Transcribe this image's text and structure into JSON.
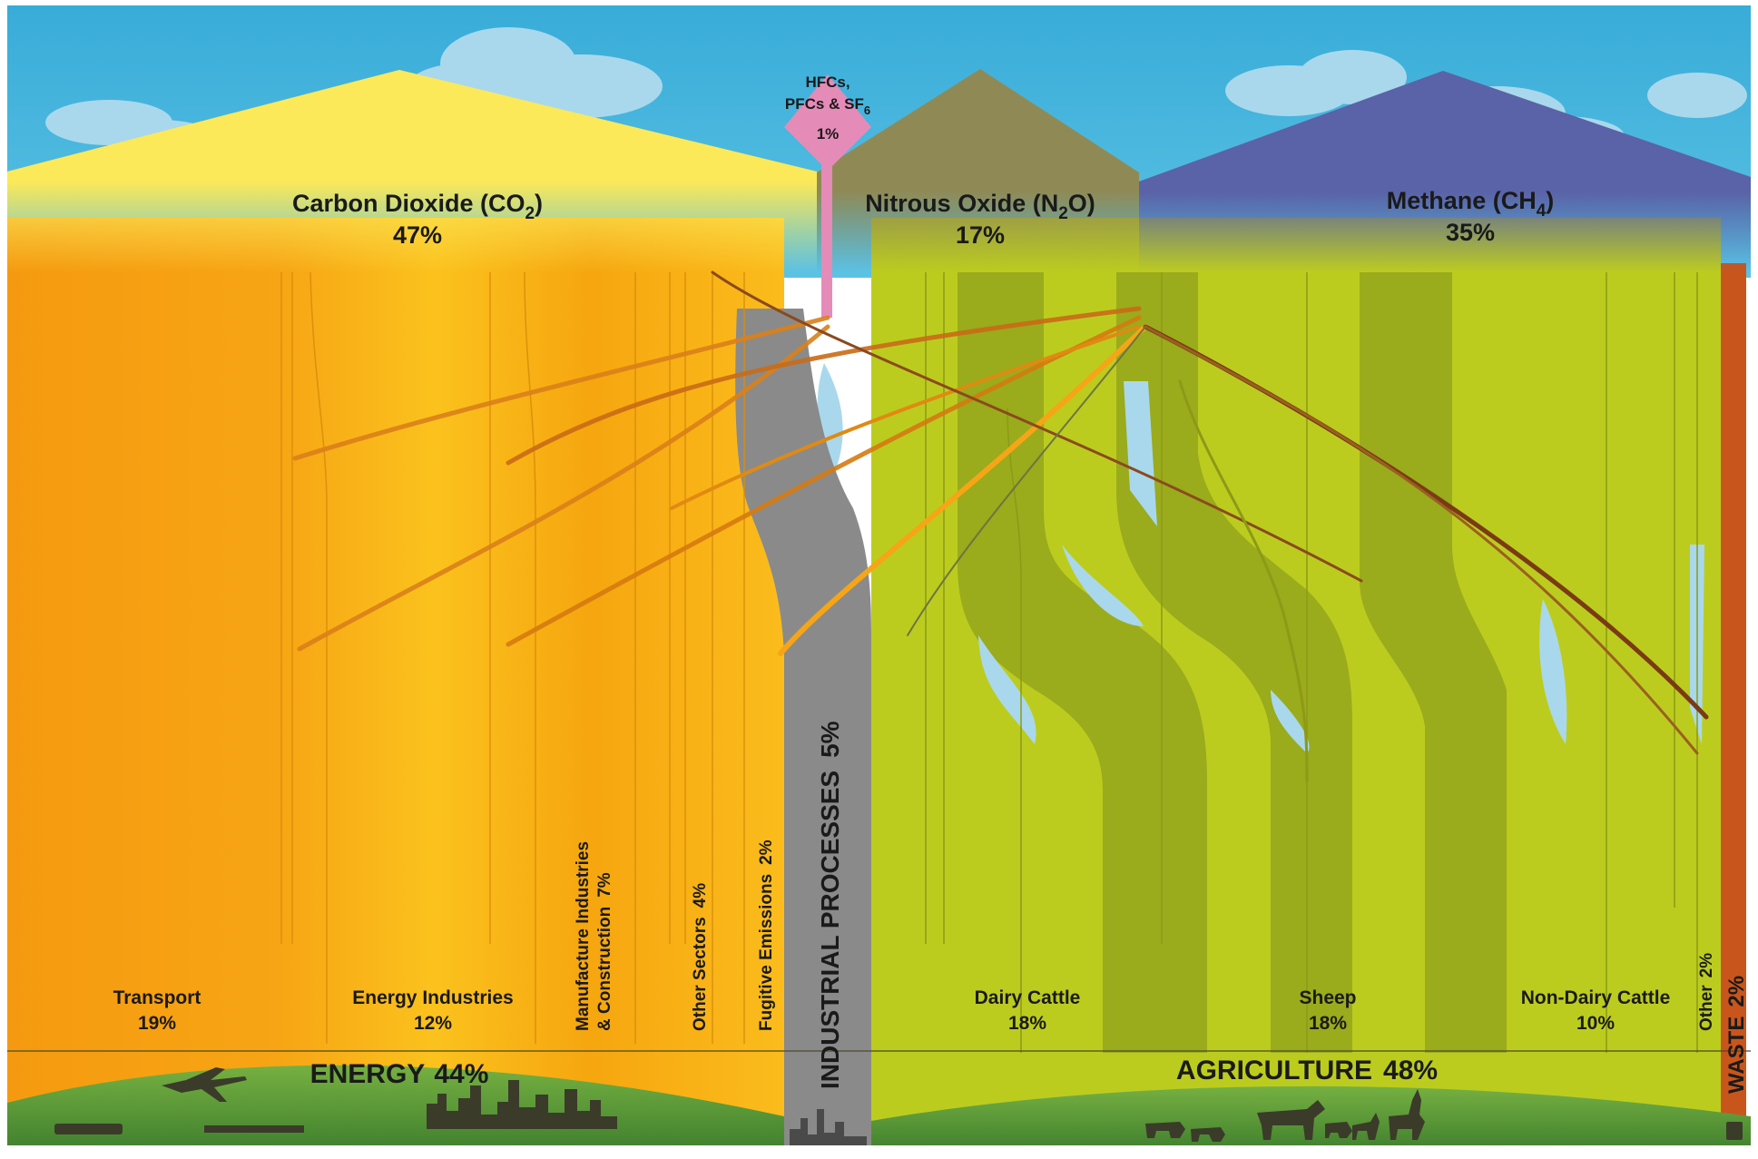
{
  "gases": [
    {
      "id": "co2",
      "name": "Carbon Dioxide (CO",
      "sub": "2",
      "tail": ")",
      "percent": "47%",
      "color": "#fbe95a"
    },
    {
      "id": "hfc",
      "line1": "HFCs,",
      "line2": "PFCs & SF",
      "sub": "6",
      "percent": "1%",
      "color": "#e58bb8"
    },
    {
      "id": "n2o",
      "name": "Nitrous Oxide (N",
      "sub": "2",
      "tail": "O)",
      "percent": "17%",
      "color": "#8f8a55"
    },
    {
      "id": "ch4",
      "name": "Methane (CH",
      "sub": "4",
      "tail": ")",
      "percent": "35%",
      "color": "#5964a8"
    }
  ],
  "sources": [
    {
      "id": "transport",
      "name": "Transport",
      "percent": "19%"
    },
    {
      "id": "energy_industries",
      "name": "Energy Industries",
      "percent": "12%"
    },
    {
      "id": "manufacture",
      "line1": "Manufacture Industries",
      "line2": "& Construction",
      "percent": "7%"
    },
    {
      "id": "other_sectors",
      "name": "Other Sectors",
      "percent": "4%"
    },
    {
      "id": "fugitive",
      "name": "Fugitive Emissions",
      "percent": "2%"
    },
    {
      "id": "dairy",
      "name": "Dairy Cattle",
      "percent": "18%"
    },
    {
      "id": "sheep",
      "name": "Sheep",
      "percent": "18%"
    },
    {
      "id": "non_dairy",
      "name": "Non-Dairy Cattle",
      "percent": "10%"
    },
    {
      "id": "ag_other",
      "name": "Other",
      "percent": "2%"
    }
  ],
  "sectors": [
    {
      "id": "energy",
      "name": "ENERGY",
      "percent": "44%",
      "color": "#f59d12"
    },
    {
      "id": "industrial",
      "name": "INDUSTRIAL PROCESSES",
      "percent": "5%",
      "color": "#8a8a8a"
    },
    {
      "id": "agriculture",
      "name": "AGRICULTURE",
      "percent": "48%",
      "color": "#b9cc1f"
    },
    {
      "id": "waste",
      "name": "WASTE",
      "percent": "2%",
      "color": "#c8561c"
    }
  ],
  "colors": {
    "sky": "#45b5dc",
    "cloud": "#a9d8ec",
    "ground": "#5c9b3a",
    "silhouette": "#3b3b2a"
  }
}
